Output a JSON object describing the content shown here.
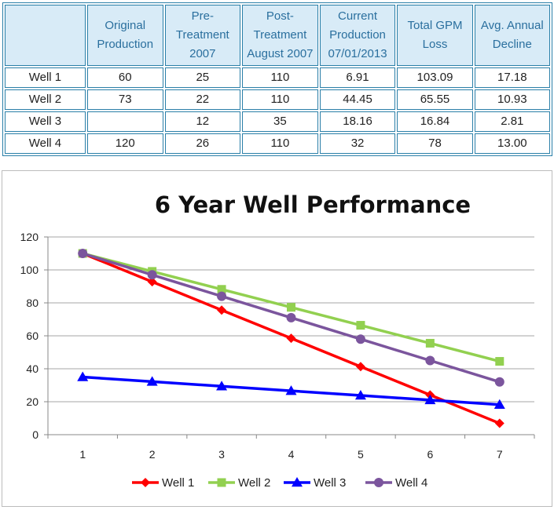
{
  "table": {
    "headers": [
      "",
      "Original Production",
      "Pre-Treatment 2007",
      "Post-Treatment August 2007",
      "Current Production 07/01/2013",
      "Total GPM Loss",
      "Avg. Annual Decline"
    ],
    "header_lines": [
      [
        ""
      ],
      [
        "Original",
        "Production"
      ],
      [
        "Pre-",
        "Treatment",
        "2007"
      ],
      [
        "Post-",
        "Treatment",
        "August 2007"
      ],
      [
        "Current",
        "Production",
        "07/01/2013"
      ],
      [
        "Total GPM",
        "Loss"
      ],
      [
        "Avg. Annual",
        "Decline"
      ]
    ],
    "rows": [
      [
        "Well 1",
        "60",
        "25",
        "110",
        "6.91",
        "103.09",
        "17.18"
      ],
      [
        "Well 2",
        "73",
        "22",
        "110",
        "44.45",
        "65.55",
        "10.93"
      ],
      [
        "Well 3",
        "",
        "12",
        "35",
        "18.16",
        "16.84",
        "2.81"
      ],
      [
        "Well 4",
        "120",
        "26",
        "110",
        "32",
        "78",
        "13.00"
      ]
    ]
  },
  "chart_data": {
    "type": "line",
    "title": "6 Year Well Performance",
    "x": [
      1,
      2,
      3,
      4,
      5,
      6,
      7
    ],
    "xlim": [
      0.5,
      7.5
    ],
    "ylim": [
      0,
      120
    ],
    "yticks": [
      0,
      20,
      40,
      60,
      80,
      100,
      120
    ],
    "grid": true,
    "legend": "bottom",
    "series": [
      {
        "name": "Well 1",
        "color": "#ff0000",
        "marker": "diamond",
        "values": [
          110,
          92.8,
          75.6,
          58.5,
          41.3,
          24.1,
          6.9
        ]
      },
      {
        "name": "Well 2",
        "color": "#92d050",
        "marker": "square",
        "values": [
          110,
          99.1,
          88.2,
          77.3,
          66.4,
          55.5,
          44.5
        ]
      },
      {
        "name": "Well 3",
        "color": "#0000ff",
        "marker": "triangle",
        "values": [
          35,
          32.2,
          29.4,
          26.6,
          23.8,
          21.0,
          18.2
        ]
      },
      {
        "name": "Well 4",
        "color": "#7b559d",
        "marker": "circle",
        "values": [
          110,
          97,
          84,
          71,
          58,
          45,
          32
        ]
      }
    ]
  }
}
